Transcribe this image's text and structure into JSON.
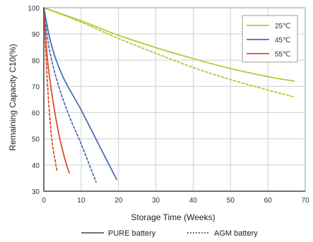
{
  "chart_data": {
    "type": "line",
    "xlabel": "Storage Time (Weeks)",
    "ylabel": "Remaining Capacity C10(%)",
    "xlim": [
      0,
      70
    ],
    "ylim": [
      30,
      100
    ],
    "x_ticks": [
      "0",
      "10",
      "20",
      "30",
      "40",
      "50",
      "60",
      "70"
    ],
    "y_ticks": [
      "30",
      "40",
      "50",
      "60",
      "70",
      "80",
      "90",
      "100"
    ],
    "grid": true,
    "legend_placement": "top-right",
    "temperature_legend": [
      {
        "label": "25℃",
        "color": "#b5c935"
      },
      {
        "label": "45℃",
        "color": "#4a6fb5"
      },
      {
        "label": "55℃",
        "color": "#e04a2e"
      }
    ],
    "battery_legend": [
      {
        "label": "PURE battery",
        "style": "solid"
      },
      {
        "label": "AGM battery",
        "style": "dotted"
      }
    ],
    "series": [
      {
        "temp": "25℃",
        "battery": "PURE",
        "color": "#b5c935",
        "dash": false,
        "points": [
          [
            0,
            100
          ],
          [
            10,
            95
          ],
          [
            20,
            89.5
          ],
          [
            30,
            84.8
          ],
          [
            40,
            80.6
          ],
          [
            50,
            76.8
          ],
          [
            60,
            73.7
          ],
          [
            67,
            72
          ]
        ]
      },
      {
        "temp": "25℃",
        "battery": "AGM",
        "color": "#b5c935",
        "dash": true,
        "points": [
          [
            0,
            100
          ],
          [
            10,
            94.5
          ],
          [
            20,
            88.3
          ],
          [
            30,
            82.6
          ],
          [
            40,
            77.2
          ],
          [
            50,
            72.6
          ],
          [
            60,
            68.6
          ],
          [
            67,
            66
          ]
        ]
      },
      {
        "temp": "45℃",
        "battery": "PURE",
        "color": "#4a6fb5",
        "dash": false,
        "points": [
          [
            0,
            100
          ],
          [
            2,
            86
          ],
          [
            5,
            74
          ],
          [
            10,
            61
          ],
          [
            15,
            47
          ],
          [
            19.5,
            34.5
          ]
        ]
      },
      {
        "temp": "45℃",
        "battery": "AGM",
        "color": "#4a6fb5",
        "dash": true,
        "points": [
          [
            0,
            100
          ],
          [
            1.5,
            84
          ],
          [
            4,
            70
          ],
          [
            7,
            58
          ],
          [
            10,
            48
          ],
          [
            14,
            33.5
          ]
        ]
      },
      {
        "temp": "55℃",
        "battery": "PURE",
        "color": "#e04a2e",
        "dash": false,
        "points": [
          [
            0,
            100
          ],
          [
            1,
            80
          ],
          [
            2.5,
            64
          ],
          [
            4,
            52
          ],
          [
            5.5,
            43
          ],
          [
            6.8,
            37
          ]
        ]
      },
      {
        "temp": "55℃",
        "battery": "AGM",
        "color": "#e04a2e",
        "dash": true,
        "points": [
          [
            0,
            100
          ],
          [
            0.7,
            78
          ],
          [
            1.5,
            60
          ],
          [
            2.3,
            48
          ],
          [
            3.5,
            38
          ]
        ]
      }
    ]
  }
}
